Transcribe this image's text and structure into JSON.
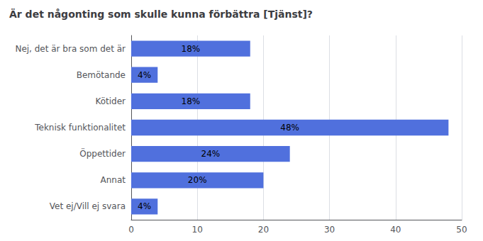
{
  "chart_data": {
    "type": "bar",
    "orientation": "horizontal",
    "title": "Är det någonting som skulle kunna förbättra [Tjänst]?",
    "categories": [
      "Nej, det är bra som det är",
      "Bemötande",
      "Kötider",
      "Teknisk funktionalitet",
      "Öppettider",
      "Annat",
      "Vet ej/Vill ej svara"
    ],
    "values": [
      18,
      4,
      18,
      48,
      24,
      20,
      4
    ],
    "value_labels": [
      "18%",
      "4%",
      "18%",
      "48%",
      "24%",
      "20%",
      "4%"
    ],
    "data_labels": true,
    "xlim": [
      0,
      50
    ],
    "xticks": [
      0,
      10,
      20,
      30,
      40,
      50
    ],
    "grid": true
  }
}
